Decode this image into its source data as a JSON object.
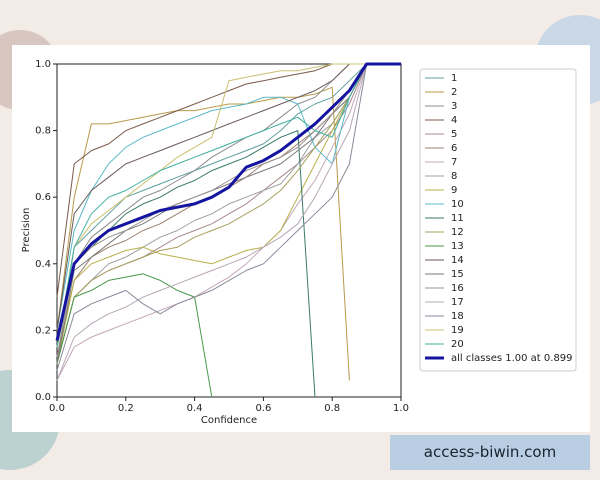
{
  "chart_data": {
    "type": "line",
    "xlabel": "Confidence",
    "ylabel": "Precision",
    "xlim": [
      0,
      1
    ],
    "ylim": [
      0,
      1
    ],
    "xticks": [
      {
        "value": 0,
        "label": "0.0"
      },
      {
        "value": 0.2,
        "label": "0.2"
      },
      {
        "value": 0.4,
        "label": "0.4"
      },
      {
        "value": 0.6,
        "label": "0.6"
      },
      {
        "value": 0.8,
        "label": "0.8"
      },
      {
        "value": 1,
        "label": "1.0"
      }
    ],
    "yticks": [
      {
        "value": 0,
        "label": "0.0"
      },
      {
        "value": 0.2,
        "label": "0.2"
      },
      {
        "value": 0.4,
        "label": "0.4"
      },
      {
        "value": 0.6,
        "label": "0.6"
      },
      {
        "value": 0.8,
        "label": "0.8"
      },
      {
        "value": 1,
        "label": "1.0"
      }
    ],
    "x": [
      0,
      0.05,
      0.1,
      0.15,
      0.2,
      0.25,
      0.3,
      0.35,
      0.4,
      0.45,
      0.5,
      0.55,
      0.6,
      0.65,
      0.7,
      0.75,
      0.8,
      0.85,
      0.9,
      0.95,
      1
    ],
    "series": [
      {
        "name": "1",
        "color": "#5f9ea0",
        "values": [
          0.1,
          0.45,
          0.5,
          0.55,
          0.6,
          0.62,
          0.64,
          0.66,
          0.68,
          0.7,
          0.72,
          0.74,
          0.76,
          0.8,
          0.85,
          0.88,
          0.9,
          0.95,
          1,
          1,
          1
        ]
      },
      {
        "name": "2",
        "color": "#b89a4a",
        "values": [
          0.2,
          0.6,
          0.82,
          0.82,
          0.83,
          0.84,
          0.85,
          0.86,
          0.86,
          0.87,
          0.88,
          0.88,
          0.89,
          0.9,
          0.9,
          0.91,
          0.93,
          0.05,
          null,
          null,
          null
        ]
      },
      {
        "name": "3",
        "color": "#8c8c8c",
        "values": [
          0.15,
          0.4,
          0.48,
          0.52,
          0.56,
          0.6,
          0.62,
          0.65,
          0.68,
          0.72,
          0.75,
          0.78,
          0.8,
          0.84,
          0.88,
          0.9,
          0.95,
          1,
          1,
          1,
          1
        ]
      },
      {
        "name": "4",
        "color": "#7a5a4a",
        "values": [
          0.3,
          0.7,
          0.74,
          0.76,
          0.8,
          0.82,
          0.84,
          0.86,
          0.88,
          0.9,
          0.92,
          0.94,
          0.95,
          0.96,
          0.97,
          0.98,
          1,
          1,
          1,
          1,
          1
        ]
      },
      {
        "name": "5",
        "color": "#a88a8a",
        "values": [
          0.1,
          0.3,
          0.35,
          0.38,
          0.4,
          0.42,
          0.45,
          0.48,
          0.5,
          0.52,
          0.55,
          0.58,
          0.62,
          0.66,
          0.7,
          0.75,
          0.8,
          0.88,
          1,
          1,
          1
        ]
      },
      {
        "name": "6",
        "color": "#9a8070",
        "values": [
          0.12,
          0.35,
          0.42,
          0.45,
          0.47,
          0.5,
          0.52,
          0.55,
          0.58,
          0.6,
          0.63,
          0.66,
          0.7,
          0.72,
          0.76,
          0.8,
          0.85,
          0.9,
          1,
          1,
          1
        ]
      },
      {
        "name": "7",
        "color": "#c4a8b8",
        "values": [
          0.05,
          0.15,
          0.18,
          0.2,
          0.22,
          0.24,
          0.26,
          0.28,
          0.3,
          0.33,
          0.36,
          0.4,
          0.45,
          0.5,
          0.58,
          0.65,
          0.75,
          0.85,
          1,
          1,
          1
        ]
      },
      {
        "name": "8",
        "color": "#a0a0a0",
        "values": [
          0.1,
          0.3,
          0.35,
          0.4,
          0.42,
          0.45,
          0.48,
          0.5,
          0.53,
          0.55,
          0.58,
          0.6,
          0.62,
          0.64,
          0.7,
          0.78,
          0.82,
          0.9,
          1,
          1,
          1
        ]
      },
      {
        "name": "9",
        "color": "#b8b04a",
        "values": [
          0.1,
          0.35,
          0.4,
          0.42,
          0.44,
          0.45,
          0.43,
          0.42,
          0.41,
          0.4,
          0.42,
          0.44,
          0.45,
          0.5,
          0.6,
          0.7,
          0.8,
          0.9,
          1,
          1,
          1
        ]
      },
      {
        "name": "10",
        "color": "#5ab8c8",
        "values": [
          0.2,
          0.5,
          0.62,
          0.7,
          0.75,
          0.78,
          0.8,
          0.82,
          0.84,
          0.86,
          0.87,
          0.88,
          0.9,
          0.9,
          0.88,
          0.75,
          0.7,
          0.9,
          1,
          1,
          1
        ]
      },
      {
        "name": "11",
        "color": "#3a7a6a",
        "values": [
          0.15,
          0.4,
          0.45,
          0.5,
          0.55,
          0.58,
          0.6,
          0.63,
          0.65,
          0.68,
          0.7,
          0.72,
          0.75,
          0.78,
          0.8,
          0.0,
          null,
          null,
          null,
          null,
          null
        ]
      },
      {
        "name": "12",
        "color": "#a8a060",
        "values": [
          0.1,
          0.3,
          0.35,
          0.38,
          0.4,
          0.42,
          0.44,
          0.45,
          0.48,
          0.5,
          0.52,
          0.55,
          0.58,
          0.62,
          0.68,
          0.75,
          0.82,
          0.9,
          1,
          1,
          1
        ]
      },
      {
        "name": "13",
        "color": "#4a9a4a",
        "values": [
          0.1,
          0.3,
          0.32,
          0.35,
          0.36,
          0.37,
          0.35,
          0.32,
          0.3,
          0.0,
          null,
          null,
          null,
          null,
          null,
          null,
          null,
          null,
          null,
          null,
          null
        ]
      },
      {
        "name": "14",
        "color": "#6a5a5a",
        "values": [
          0.2,
          0.55,
          0.62,
          0.66,
          0.7,
          0.72,
          0.74,
          0.76,
          0.78,
          0.8,
          0.82,
          0.84,
          0.86,
          0.88,
          0.9,
          0.92,
          0.95,
          1,
          1,
          1,
          1
        ]
      },
      {
        "name": "15",
        "color": "#7a7a7a",
        "values": [
          0.1,
          0.38,
          0.42,
          0.46,
          0.5,
          0.52,
          0.55,
          0.58,
          0.6,
          0.62,
          0.64,
          0.66,
          0.68,
          0.7,
          0.74,
          0.78,
          0.85,
          0.9,
          1,
          1,
          1
        ]
      },
      {
        "name": "16",
        "color": "#9a9090",
        "values": [
          0.12,
          0.4,
          0.45,
          0.48,
          0.5,
          0.53,
          0.56,
          0.58,
          0.6,
          0.62,
          0.65,
          0.68,
          0.7,
          0.72,
          0.75,
          0.8,
          0.85,
          0.92,
          1,
          1,
          1
        ]
      },
      {
        "name": "17",
        "color": "#b8a8b8",
        "values": [
          0.05,
          0.18,
          0.22,
          0.25,
          0.27,
          0.3,
          0.32,
          0.34,
          0.36,
          0.38,
          0.4,
          0.42,
          0.45,
          0.48,
          0.52,
          0.6,
          0.7,
          0.8,
          1,
          1,
          1
        ]
      },
      {
        "name": "18",
        "color": "#8a8a9a",
        "values": [
          0.08,
          0.25,
          0.28,
          0.3,
          0.32,
          0.28,
          0.25,
          0.28,
          0.3,
          0.32,
          0.35,
          0.38,
          0.4,
          0.45,
          0.5,
          0.55,
          0.6,
          0.7,
          1,
          1,
          1
        ]
      },
      {
        "name": "19",
        "color": "#c8c070",
        "values": [
          0.15,
          0.45,
          0.52,
          0.56,
          0.6,
          0.64,
          0.68,
          0.72,
          0.75,
          0.78,
          0.95,
          0.96,
          0.97,
          0.98,
          0.98,
          0.99,
          1,
          1,
          1,
          1,
          1
        ]
      },
      {
        "name": "20",
        "color": "#40b0a0",
        "values": [
          0.15,
          0.45,
          0.55,
          0.6,
          0.62,
          0.65,
          0.68,
          0.7,
          0.72,
          0.74,
          0.76,
          0.78,
          0.8,
          0.82,
          0.84,
          0.8,
          0.78,
          0.9,
          1,
          1,
          1
        ]
      },
      {
        "name": "all classes 1.00 at 0.899",
        "color": "#1414a0",
        "width": 3,
        "values": [
          0.17,
          0.4,
          0.46,
          0.5,
          0.52,
          0.54,
          0.56,
          0.57,
          0.58,
          0.6,
          0.63,
          0.69,
          0.71,
          0.74,
          0.78,
          0.82,
          0.87,
          0.92,
          1,
          1,
          1
        ]
      }
    ]
  },
  "watermark": "access-biwin.com"
}
